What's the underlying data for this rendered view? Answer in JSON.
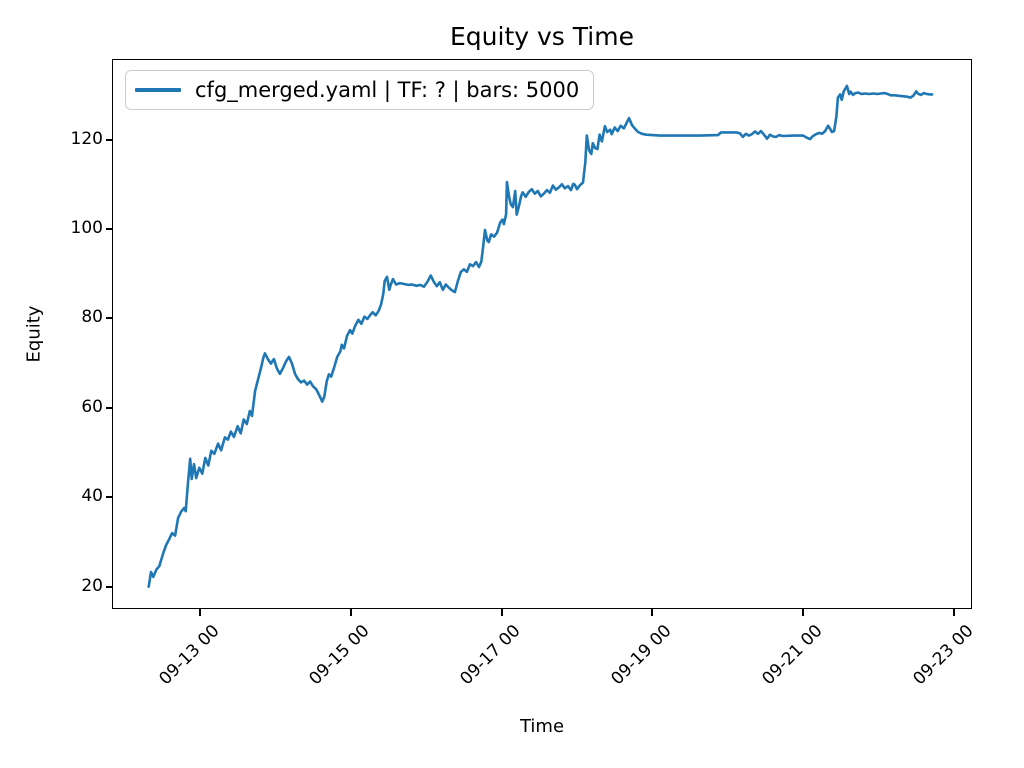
{
  "figure": {
    "title": "Equity vs Time",
    "xlabel": "Time",
    "ylabel": "Equity",
    "background_color": "#ffffff",
    "axis_color": "#000000"
  },
  "legend": {
    "label": "cfg_merged.yaml | TF: ? | bars: 5000",
    "line_color": "#1f77b4",
    "position": "upper left"
  },
  "chart_data": {
    "type": "line",
    "title": "Equity vs Time",
    "xlabel": "Time",
    "ylabel": "Equity",
    "grid": false,
    "legend_position": "upper left",
    "x_unit": "days relative to 09-13 00:00",
    "xlim_days": [
      -1.154,
      10.212
    ],
    "ylim": [
      15.24,
      137.8
    ],
    "y_ticks": [
      20,
      40,
      60,
      80,
      100,
      120
    ],
    "x_ticks": [
      {
        "d": 0,
        "label": "09-13 00"
      },
      {
        "d": 2,
        "label": "09-15 00"
      },
      {
        "d": 4,
        "label": "09-17 00"
      },
      {
        "d": 6,
        "label": "09-19 00"
      },
      {
        "d": 8,
        "label": "09-21 00"
      },
      {
        "d": 10,
        "label": "09-23 00"
      }
    ],
    "series": [
      {
        "name": "cfg_merged.yaml | TF: ? | bars: 5000",
        "color": "#1f77b4",
        "line_width": 2.6,
        "points": [
          [
            -0.68,
            20.0
          ],
          [
            -0.65,
            23.3
          ],
          [
            -0.62,
            22.2
          ],
          [
            -0.58,
            23.8
          ],
          [
            -0.54,
            24.6
          ],
          [
            -0.49,
            27.4
          ],
          [
            -0.45,
            29.3
          ],
          [
            -0.41,
            30.6
          ],
          [
            -0.37,
            32.0
          ],
          [
            -0.33,
            31.4
          ],
          [
            -0.29,
            35.4
          ],
          [
            -0.25,
            36.8
          ],
          [
            -0.21,
            37.6
          ],
          [
            -0.19,
            36.9
          ],
          [
            -0.16,
            43.0
          ],
          [
            -0.13,
            48.6
          ],
          [
            -0.11,
            44.1
          ],
          [
            -0.08,
            47.4
          ],
          [
            -0.05,
            44.3
          ],
          [
            -0.01,
            46.6
          ],
          [
            0.03,
            45.3
          ],
          [
            0.07,
            48.8
          ],
          [
            0.11,
            47.1
          ],
          [
            0.15,
            50.4
          ],
          [
            0.19,
            49.7
          ],
          [
            0.24,
            52.0
          ],
          [
            0.28,
            50.5
          ],
          [
            0.33,
            53.4
          ],
          [
            0.37,
            52.9
          ],
          [
            0.41,
            54.7
          ],
          [
            0.45,
            53.5
          ],
          [
            0.5,
            55.9
          ],
          [
            0.54,
            54.3
          ],
          [
            0.58,
            57.4
          ],
          [
            0.62,
            56.4
          ],
          [
            0.66,
            59.3
          ],
          [
            0.69,
            58.2
          ],
          [
            0.73,
            63.8
          ],
          [
            0.77,
            66.4
          ],
          [
            0.81,
            69.0
          ],
          [
            0.84,
            71.2
          ],
          [
            0.86,
            72.2
          ],
          [
            0.9,
            70.9
          ],
          [
            0.94,
            69.9
          ],
          [
            0.98,
            70.9
          ],
          [
            1.02,
            68.8
          ],
          [
            1.06,
            67.6
          ],
          [
            1.1,
            68.9
          ],
          [
            1.14,
            70.4
          ],
          [
            1.18,
            71.4
          ],
          [
            1.22,
            69.9
          ],
          [
            1.26,
            67.6
          ],
          [
            1.3,
            66.4
          ],
          [
            1.34,
            65.7
          ],
          [
            1.38,
            66.1
          ],
          [
            1.42,
            65.2
          ],
          [
            1.46,
            65.9
          ],
          [
            1.5,
            64.8
          ],
          [
            1.54,
            64.2
          ],
          [
            1.58,
            62.9
          ],
          [
            1.62,
            61.4
          ],
          [
            1.65,
            62.6
          ],
          [
            1.68,
            65.9
          ],
          [
            1.71,
            67.5
          ],
          [
            1.74,
            67.0
          ],
          [
            1.78,
            69.1
          ],
          [
            1.82,
            71.4
          ],
          [
            1.86,
            72.6
          ],
          [
            1.88,
            74.1
          ],
          [
            1.91,
            73.3
          ],
          [
            1.95,
            76.1
          ],
          [
            1.99,
            77.4
          ],
          [
            2.02,
            76.6
          ],
          [
            2.06,
            78.4
          ],
          [
            2.1,
            79.7
          ],
          [
            2.14,
            78.8
          ],
          [
            2.18,
            80.4
          ],
          [
            2.22,
            79.9
          ],
          [
            2.26,
            80.8
          ],
          [
            2.29,
            81.4
          ],
          [
            2.33,
            80.7
          ],
          [
            2.37,
            81.7
          ],
          [
            2.4,
            83.1
          ],
          [
            2.43,
            85.4
          ],
          [
            2.45,
            88.4
          ],
          [
            2.48,
            89.3
          ],
          [
            2.51,
            86.4
          ],
          [
            2.53,
            87.6
          ],
          [
            2.56,
            88.8
          ],
          [
            2.6,
            87.6
          ],
          [
            2.65,
            87.9
          ],
          [
            2.71,
            87.7
          ],
          [
            2.76,
            87.5
          ],
          [
            2.81,
            87.6
          ],
          [
            2.87,
            87.3
          ],
          [
            2.92,
            87.5
          ],
          [
            2.97,
            87.1
          ],
          [
            3.02,
            88.3
          ],
          [
            3.06,
            89.6
          ],
          [
            3.1,
            88.2
          ],
          [
            3.14,
            87.2
          ],
          [
            3.18,
            88.1
          ],
          [
            3.22,
            86.4
          ],
          [
            3.26,
            87.6
          ],
          [
            3.3,
            86.9
          ],
          [
            3.34,
            86.3
          ],
          [
            3.38,
            85.9
          ],
          [
            3.42,
            88.4
          ],
          [
            3.46,
            90.4
          ],
          [
            3.5,
            91.0
          ],
          [
            3.54,
            90.4
          ],
          [
            3.58,
            92.1
          ],
          [
            3.62,
            91.7
          ],
          [
            3.66,
            92.6
          ],
          [
            3.7,
            91.5
          ],
          [
            3.73,
            92.7
          ],
          [
            3.75,
            95.4
          ],
          [
            3.78,
            99.8
          ],
          [
            3.81,
            97.4
          ],
          [
            3.83,
            97.1
          ],
          [
            3.86,
            98.8
          ],
          [
            3.9,
            98.3
          ],
          [
            3.94,
            99.2
          ],
          [
            3.98,
            101.4
          ],
          [
            4.01,
            102.1
          ],
          [
            4.03,
            101.1
          ],
          [
            4.06,
            103.3
          ],
          [
            4.07,
            110.5
          ],
          [
            4.1,
            107.1
          ],
          [
            4.12,
            105.6
          ],
          [
            4.15,
            104.9
          ],
          [
            4.18,
            108.5
          ],
          [
            4.2,
            103.2
          ],
          [
            4.23,
            105.2
          ],
          [
            4.26,
            107.4
          ],
          [
            4.28,
            108.2
          ],
          [
            4.32,
            107.2
          ],
          [
            4.36,
            108.3
          ],
          [
            4.4,
            108.9
          ],
          [
            4.44,
            107.9
          ],
          [
            4.48,
            108.5
          ],
          [
            4.52,
            107.3
          ],
          [
            4.56,
            107.9
          ],
          [
            4.6,
            108.7
          ],
          [
            4.64,
            108.1
          ],
          [
            4.68,
            109.7
          ],
          [
            4.72,
            108.8
          ],
          [
            4.76,
            109.3
          ],
          [
            4.8,
            110.0
          ],
          [
            4.84,
            109.1
          ],
          [
            4.88,
            109.6
          ],
          [
            4.92,
            108.7
          ],
          [
            4.95,
            110.1
          ],
          [
            4.97,
            109.9
          ],
          [
            5.0,
            108.9
          ],
          [
            5.04,
            109.8
          ],
          [
            5.08,
            110.4
          ],
          [
            5.11,
            114.9
          ],
          [
            5.13,
            120.9
          ],
          [
            5.16,
            117.6
          ],
          [
            5.19,
            116.8
          ],
          [
            5.21,
            119.2
          ],
          [
            5.24,
            118.1
          ],
          [
            5.27,
            117.9
          ],
          [
            5.3,
            121.1
          ],
          [
            5.33,
            119.6
          ],
          [
            5.37,
            123.0
          ],
          [
            5.4,
            121.7
          ],
          [
            5.44,
            122.2
          ],
          [
            5.46,
            121.2
          ],
          [
            5.5,
            122.7
          ],
          [
            5.54,
            121.9
          ],
          [
            5.58,
            123.1
          ],
          [
            5.62,
            122.5
          ],
          [
            5.66,
            123.8
          ],
          [
            5.69,
            124.8
          ],
          [
            5.73,
            123.2
          ],
          [
            5.77,
            122.4
          ],
          [
            5.81,
            121.7
          ],
          [
            5.86,
            121.3
          ],
          [
            5.92,
            121.1
          ],
          [
            6.0,
            121.0
          ],
          [
            6.1,
            120.9
          ],
          [
            6.37,
            120.9
          ],
          [
            6.63,
            120.9
          ],
          [
            6.87,
            121.0
          ],
          [
            6.91,
            121.6
          ],
          [
            7.11,
            121.6
          ],
          [
            7.16,
            121.4
          ],
          [
            7.2,
            120.6
          ],
          [
            7.24,
            121.3
          ],
          [
            7.28,
            120.9
          ],
          [
            7.32,
            121.2
          ],
          [
            7.36,
            121.8
          ],
          [
            7.4,
            121.3
          ],
          [
            7.44,
            121.9
          ],
          [
            7.48,
            121.1
          ],
          [
            7.52,
            120.2
          ],
          [
            7.56,
            121.1
          ],
          [
            7.6,
            120.7
          ],
          [
            7.64,
            120.6
          ],
          [
            7.68,
            121.0
          ],
          [
            7.73,
            120.8
          ],
          [
            7.87,
            120.9
          ],
          [
            8.0,
            120.9
          ],
          [
            8.05,
            120.4
          ],
          [
            8.09,
            120.1
          ],
          [
            8.13,
            120.8
          ],
          [
            8.17,
            121.2
          ],
          [
            8.21,
            121.5
          ],
          [
            8.25,
            121.3
          ],
          [
            8.29,
            121.9
          ],
          [
            8.33,
            123.1
          ],
          [
            8.36,
            122.3
          ],
          [
            8.38,
            121.7
          ],
          [
            8.41,
            121.9
          ],
          [
            8.44,
            125.2
          ],
          [
            8.46,
            129.4
          ],
          [
            8.49,
            130.1
          ],
          [
            8.51,
            128.9
          ],
          [
            8.54,
            130.9
          ],
          [
            8.57,
            131.7
          ],
          [
            8.58,
            132.0
          ],
          [
            8.61,
            130.2
          ],
          [
            8.63,
            130.7
          ],
          [
            8.66,
            130.0
          ],
          [
            8.69,
            130.4
          ],
          [
            8.73,
            130.5
          ],
          [
            8.77,
            130.2
          ],
          [
            8.82,
            130.3
          ],
          [
            8.87,
            130.2
          ],
          [
            8.93,
            130.3
          ],
          [
            8.98,
            130.2
          ],
          [
            9.03,
            130.3
          ],
          [
            9.08,
            130.4
          ],
          [
            9.12,
            130.2
          ],
          [
            9.16,
            129.9
          ],
          [
            9.22,
            129.9
          ],
          [
            9.27,
            129.8
          ],
          [
            9.32,
            129.7
          ],
          [
            9.38,
            129.6
          ],
          [
            9.42,
            129.4
          ],
          [
            9.46,
            129.8
          ],
          [
            9.5,
            130.8
          ],
          [
            9.52,
            130.3
          ],
          [
            9.56,
            130.0
          ],
          [
            9.6,
            130.4
          ],
          [
            9.64,
            130.2
          ],
          [
            9.68,
            130.1
          ],
          [
            9.71,
            130.1
          ]
        ]
      }
    ]
  }
}
